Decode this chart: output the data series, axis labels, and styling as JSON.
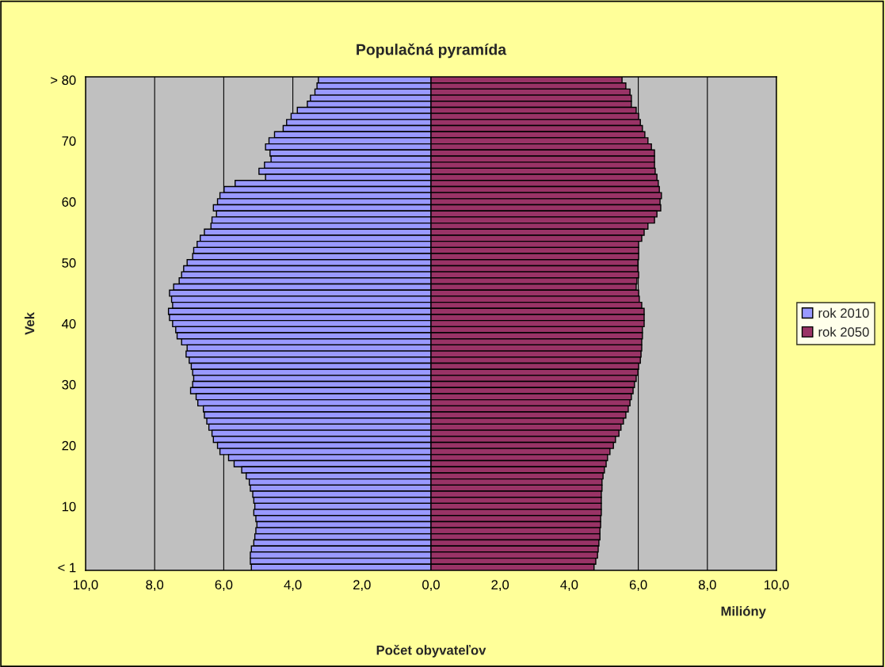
{
  "chart_data": {
    "type": "bar",
    "orientation": "horizontal",
    "title": "Populačná pyramída",
    "xlabel": "Počet obyvateľov",
    "ylabel": "Vek",
    "annotations": [
      "Milióny"
    ],
    "categories": [
      "> 80",
      null,
      null,
      null,
      null,
      null,
      null,
      null,
      null,
      null,
      "70",
      null,
      null,
      null,
      null,
      null,
      null,
      null,
      null,
      null,
      "60",
      null,
      null,
      null,
      null,
      null,
      null,
      null,
      null,
      null,
      "50",
      null,
      null,
      null,
      null,
      null,
      null,
      null,
      null,
      null,
      "40",
      null,
      null,
      null,
      null,
      null,
      null,
      null,
      null,
      null,
      "30",
      null,
      null,
      null,
      null,
      null,
      null,
      null,
      null,
      null,
      "20",
      null,
      null,
      null,
      null,
      null,
      null,
      null,
      null,
      null,
      "10",
      null,
      null,
      null,
      null,
      null,
      null,
      null,
      null,
      null,
      "< 1"
    ],
    "series": [
      {
        "name": "rok 2010",
        "color": "#9999ff",
        "values": [
          -3.26,
          -3.3,
          -3.36,
          -3.49,
          -3.58,
          -3.87,
          -4.05,
          -4.18,
          -4.28,
          -4.53,
          -4.69,
          -4.79,
          -4.66,
          -4.63,
          -4.82,
          -4.98,
          -4.79,
          -5.67,
          -5.99,
          -6.11,
          -6.18,
          -6.3,
          -6.21,
          -6.34,
          -6.37,
          -6.56,
          -6.68,
          -6.77,
          -6.87,
          -6.9,
          -7.06,
          -7.16,
          -7.22,
          -7.29,
          -7.45,
          -7.57,
          -7.51,
          -7.48,
          -7.6,
          -7.57,
          -7.48,
          -7.39,
          -7.35,
          -7.22,
          -7.06,
          -7.09,
          -7.0,
          -6.94,
          -6.9,
          -6.87,
          -6.9,
          -6.96,
          -6.8,
          -6.75,
          -6.59,
          -6.56,
          -6.49,
          -6.43,
          -6.34,
          -6.3,
          -6.18,
          -6.11,
          -5.86,
          -5.7,
          -5.48,
          -5.35,
          -5.26,
          -5.23,
          -5.16,
          -5.13,
          -5.1,
          -5.13,
          -5.07,
          -5.04,
          -5.07,
          -5.1,
          -5.13,
          -5.2,
          -5.23,
          -5.23,
          -5.2
        ]
      },
      {
        "name": "rok 2050",
        "color": "#993366",
        "values": [
          5.53,
          5.64,
          5.76,
          5.8,
          5.8,
          5.94,
          6.01,
          6.06,
          6.12,
          6.19,
          6.28,
          6.38,
          6.47,
          6.47,
          6.47,
          6.49,
          6.54,
          6.58,
          6.61,
          6.67,
          6.63,
          6.65,
          6.54,
          6.47,
          6.28,
          6.17,
          6.1,
          6.01,
          6.01,
          6.01,
          5.99,
          5.99,
          6.01,
          5.96,
          5.94,
          6.01,
          6.03,
          6.1,
          6.17,
          6.17,
          6.17,
          6.12,
          6.12,
          6.1,
          6.1,
          6.08,
          6.06,
          6.01,
          5.99,
          5.94,
          5.89,
          5.85,
          5.8,
          5.76,
          5.71,
          5.64,
          5.57,
          5.5,
          5.44,
          5.34,
          5.28,
          5.18,
          5.11,
          5.07,
          5.02,
          4.98,
          4.95,
          4.95,
          4.93,
          4.93,
          4.93,
          4.93,
          4.91,
          4.91,
          4.89,
          4.89,
          4.86,
          4.84,
          4.82,
          4.77,
          4.72
        ]
      }
    ],
    "xlim": [
      -10,
      10
    ],
    "xticks": [
      {
        "value": -10,
        "label": "10,0"
      },
      {
        "value": -8,
        "label": "8,0"
      },
      {
        "value": -6,
        "label": "6,0"
      },
      {
        "value": -4,
        "label": "4,0"
      },
      {
        "value": -2,
        "label": "2,0"
      },
      {
        "value": 0,
        "label": "0,0"
      },
      {
        "value": 2,
        "label": "2,0"
      },
      {
        "value": 4,
        "label": "4,0"
      },
      {
        "value": 6,
        "label": "6,0"
      },
      {
        "value": 8,
        "label": "8,0"
      },
      {
        "value": 10,
        "label": "10,0"
      }
    ],
    "grid": "x",
    "legend": "right",
    "stacked": true
  }
}
